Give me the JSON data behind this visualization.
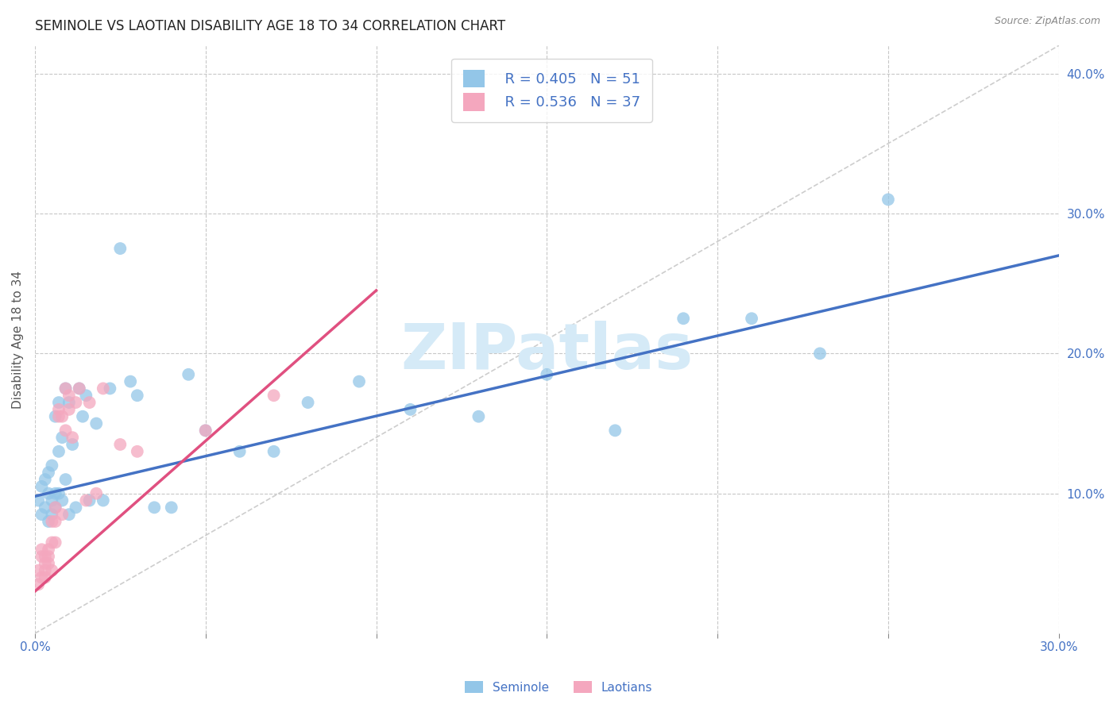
{
  "title": "SEMINOLE VS LAOTIAN DISABILITY AGE 18 TO 34 CORRELATION CHART",
  "source": "Source: ZipAtlas.com",
  "ylabel": "Disability Age 18 to 34",
  "ylabel_right_ticks": [
    "10.0%",
    "20.0%",
    "30.0%",
    "40.0%"
  ],
  "ylabel_right_vals": [
    0.1,
    0.2,
    0.3,
    0.4
  ],
  "xlim": [
    0.0,
    0.3
  ],
  "ylim": [
    0.0,
    0.42
  ],
  "seminole_R": 0.405,
  "seminole_N": 51,
  "laotian_R": 0.536,
  "laotian_N": 37,
  "seminole_color": "#93c6e8",
  "laotian_color": "#f4a7be",
  "trend_color_seminole": "#4472c4",
  "trend_color_laotian": "#e05080",
  "diagonal_color": "#c8c8c8",
  "watermark_color": "#d5eaf7",
  "seminole_x": [
    0.001,
    0.002,
    0.002,
    0.003,
    0.003,
    0.004,
    0.004,
    0.004,
    0.005,
    0.005,
    0.005,
    0.006,
    0.006,
    0.006,
    0.007,
    0.007,
    0.007,
    0.008,
    0.008,
    0.009,
    0.009,
    0.01,
    0.01,
    0.011,
    0.012,
    0.013,
    0.014,
    0.015,
    0.016,
    0.018,
    0.02,
    0.022,
    0.025,
    0.028,
    0.03,
    0.035,
    0.04,
    0.045,
    0.05,
    0.06,
    0.07,
    0.08,
    0.095,
    0.11,
    0.13,
    0.15,
    0.17,
    0.19,
    0.21,
    0.23,
    0.25
  ],
  "seminole_y": [
    0.095,
    0.105,
    0.085,
    0.09,
    0.11,
    0.1,
    0.115,
    0.08,
    0.12,
    0.095,
    0.085,
    0.1,
    0.155,
    0.09,
    0.13,
    0.165,
    0.1,
    0.14,
    0.095,
    0.11,
    0.175,
    0.085,
    0.165,
    0.135,
    0.09,
    0.175,
    0.155,
    0.17,
    0.095,
    0.15,
    0.095,
    0.175,
    0.275,
    0.18,
    0.17,
    0.09,
    0.09,
    0.185,
    0.145,
    0.13,
    0.13,
    0.165,
    0.18,
    0.16,
    0.155,
    0.185,
    0.145,
    0.225,
    0.225,
    0.2,
    0.31
  ],
  "laotian_x": [
    0.001,
    0.001,
    0.002,
    0.002,
    0.002,
    0.003,
    0.003,
    0.003,
    0.003,
    0.004,
    0.004,
    0.004,
    0.005,
    0.005,
    0.005,
    0.006,
    0.006,
    0.006,
    0.007,
    0.007,
    0.008,
    0.008,
    0.009,
    0.009,
    0.01,
    0.01,
    0.011,
    0.012,
    0.013,
    0.015,
    0.016,
    0.018,
    0.02,
    0.025,
    0.03,
    0.05,
    0.07
  ],
  "laotian_y": [
    0.045,
    0.035,
    0.055,
    0.04,
    0.06,
    0.055,
    0.05,
    0.045,
    0.04,
    0.055,
    0.06,
    0.05,
    0.065,
    0.08,
    0.045,
    0.09,
    0.065,
    0.08,
    0.155,
    0.16,
    0.155,
    0.085,
    0.145,
    0.175,
    0.17,
    0.16,
    0.14,
    0.165,
    0.175,
    0.095,
    0.165,
    0.1,
    0.175,
    0.135,
    0.13,
    0.145,
    0.17
  ],
  "seminole_trend_x0": 0.0,
  "seminole_trend_y0": 0.098,
  "seminole_trend_x1": 0.3,
  "seminole_trend_y1": 0.27,
  "laotian_trend_x0": 0.0,
  "laotian_trend_y0": 0.03,
  "laotian_trend_x1": 0.1,
  "laotian_trend_y1": 0.245
}
